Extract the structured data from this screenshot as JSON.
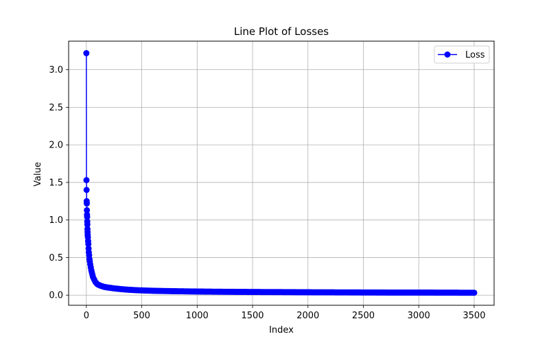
{
  "chart_data": {
    "type": "line",
    "title": "Line Plot of Losses",
    "xlabel": "Index",
    "ylabel": "Value",
    "xlim": [
      -160,
      3680
    ],
    "ylim": [
      -0.135,
      3.38
    ],
    "xticks": [
      0,
      500,
      1000,
      1500,
      2000,
      2500,
      3000,
      3500
    ],
    "yticks": [
      0.0,
      0.5,
      1.0,
      1.5,
      2.0,
      2.5,
      3.0
    ],
    "xtick_labels": [
      "0",
      "500",
      "1000",
      "1500",
      "2000",
      "2500",
      "3000",
      "3500"
    ],
    "ytick_labels": [
      "0.0",
      "0.5",
      "1.0",
      "1.5",
      "2.0",
      "2.5",
      "3.0"
    ],
    "grid": true,
    "legend_position": "top-right",
    "series": [
      {
        "name": "Loss",
        "color": "#0000ff",
        "marker": "circle",
        "points": [
          [
            0,
            3.22
          ],
          [
            1,
            1.53
          ],
          [
            2,
            1.4
          ],
          [
            3,
            1.25
          ],
          [
            4,
            1.22
          ],
          [
            5,
            1.13
          ],
          [
            6,
            1.07
          ],
          [
            7,
            1.04
          ],
          [
            8,
            0.98
          ],
          [
            9,
            0.94
          ],
          [
            10,
            0.88
          ],
          [
            11,
            0.84
          ],
          [
            12,
            0.8
          ],
          [
            14,
            0.77
          ],
          [
            16,
            0.72
          ],
          [
            18,
            0.68
          ],
          [
            20,
            0.62
          ],
          [
            22,
            0.57
          ],
          [
            25,
            0.53
          ],
          [
            28,
            0.48
          ],
          [
            31,
            0.45
          ],
          [
            35,
            0.41
          ],
          [
            40,
            0.37
          ],
          [
            45,
            0.33
          ],
          [
            50,
            0.3
          ],
          [
            55,
            0.27
          ],
          [
            60,
            0.24
          ],
          [
            70,
            0.21
          ],
          [
            80,
            0.18
          ],
          [
            90,
            0.16
          ],
          [
            100,
            0.145
          ],
          [
            120,
            0.13
          ],
          [
            140,
            0.12
          ],
          [
            160,
            0.11
          ],
          [
            180,
            0.105
          ],
          [
            200,
            0.1
          ],
          [
            250,
            0.09
          ],
          [
            300,
            0.082
          ],
          [
            350,
            0.075
          ],
          [
            400,
            0.07
          ],
          [
            450,
            0.066
          ],
          [
            500,
            0.063
          ],
          [
            600,
            0.058
          ],
          [
            700,
            0.055
          ],
          [
            800,
            0.052
          ],
          [
            900,
            0.05
          ],
          [
            1000,
            0.048
          ],
          [
            1200,
            0.045
          ],
          [
            1400,
            0.043
          ],
          [
            1600,
            0.041
          ],
          [
            1800,
            0.04
          ],
          [
            2000,
            0.038
          ],
          [
            2200,
            0.037
          ],
          [
            2400,
            0.036
          ],
          [
            2600,
            0.035
          ],
          [
            2800,
            0.034
          ],
          [
            3000,
            0.034
          ],
          [
            3200,
            0.033
          ],
          [
            3400,
            0.032
          ],
          [
            3500,
            0.032
          ]
        ]
      }
    ]
  }
}
